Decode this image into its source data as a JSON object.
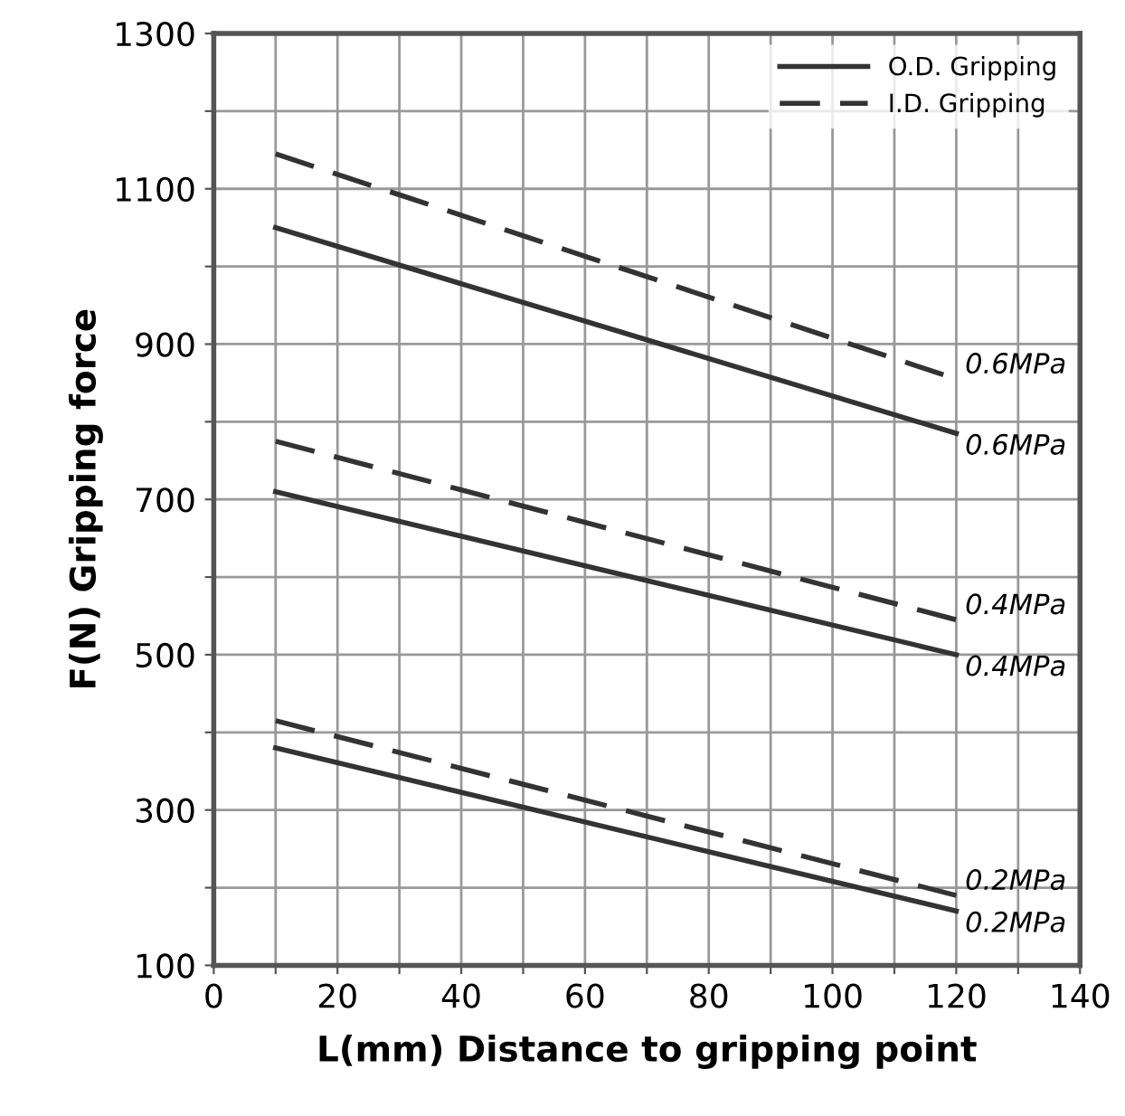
{
  "chart_data": {
    "type": "line",
    "xlabel": "L(mm) Distance to gripping point",
    "ylabel": "F(N) Gripping force",
    "x": [
      10,
      120
    ],
    "xlim": [
      0,
      140
    ],
    "ylim": [
      100,
      1300
    ],
    "xticks": [
      0,
      {
        "value": 10,
        "label": null
      },
      20,
      {
        "value": 30,
        "label": null
      },
      40,
      {
        "value": 50,
        "label": null
      },
      60,
      {
        "value": 70,
        "label": null
      },
      80,
      {
        "value": 90,
        "label": null
      },
      100,
      {
        "value": 110,
        "label": null
      },
      120,
      {
        "value": 130,
        "label": null
      },
      140
    ],
    "yticks": [
      100,
      {
        "value": 200,
        "label": null
      },
      300,
      {
        "value": 400,
        "label": null
      },
      500,
      {
        "value": 600,
        "label": null
      },
      700,
      {
        "value": 800,
        "label": null
      },
      900,
      {
        "value": 1000,
        "label": null
      },
      1100,
      {
        "value": 1200,
        "label": null
      },
      1300
    ],
    "grid": true,
    "legend": "top right",
    "marker": "none",
    "series": [
      {
        "name": "O.D. Gripping",
        "color": "#333333",
        "line_style": "solid",
        "values": [
          1050,
          785
        ]
      },
      {
        "name": "I.D. Gripping",
        "color": "#333333",
        "line_style": "dashed",
        "values": [
          1145,
          855
        ]
      },
      {
        "color": "#333333",
        "line_style": "solid",
        "values": [
          710,
          500
        ]
      },
      {
        "color": "#333333",
        "line_style": "dashed",
        "values": [
          775,
          545
        ]
      },
      {
        "color": "#333333",
        "line_style": "solid",
        "values": [
          380,
          170
        ]
      },
      {
        "color": "#333333",
        "line_style": "dashed",
        "values": [
          415,
          190
        ]
      }
    ],
    "annotations": [
      "0.6MPa",
      "0.6MPa",
      "0.4MPa",
      "0.4MPa",
      "0.2MPa",
      "0.2MPa"
    ]
  }
}
